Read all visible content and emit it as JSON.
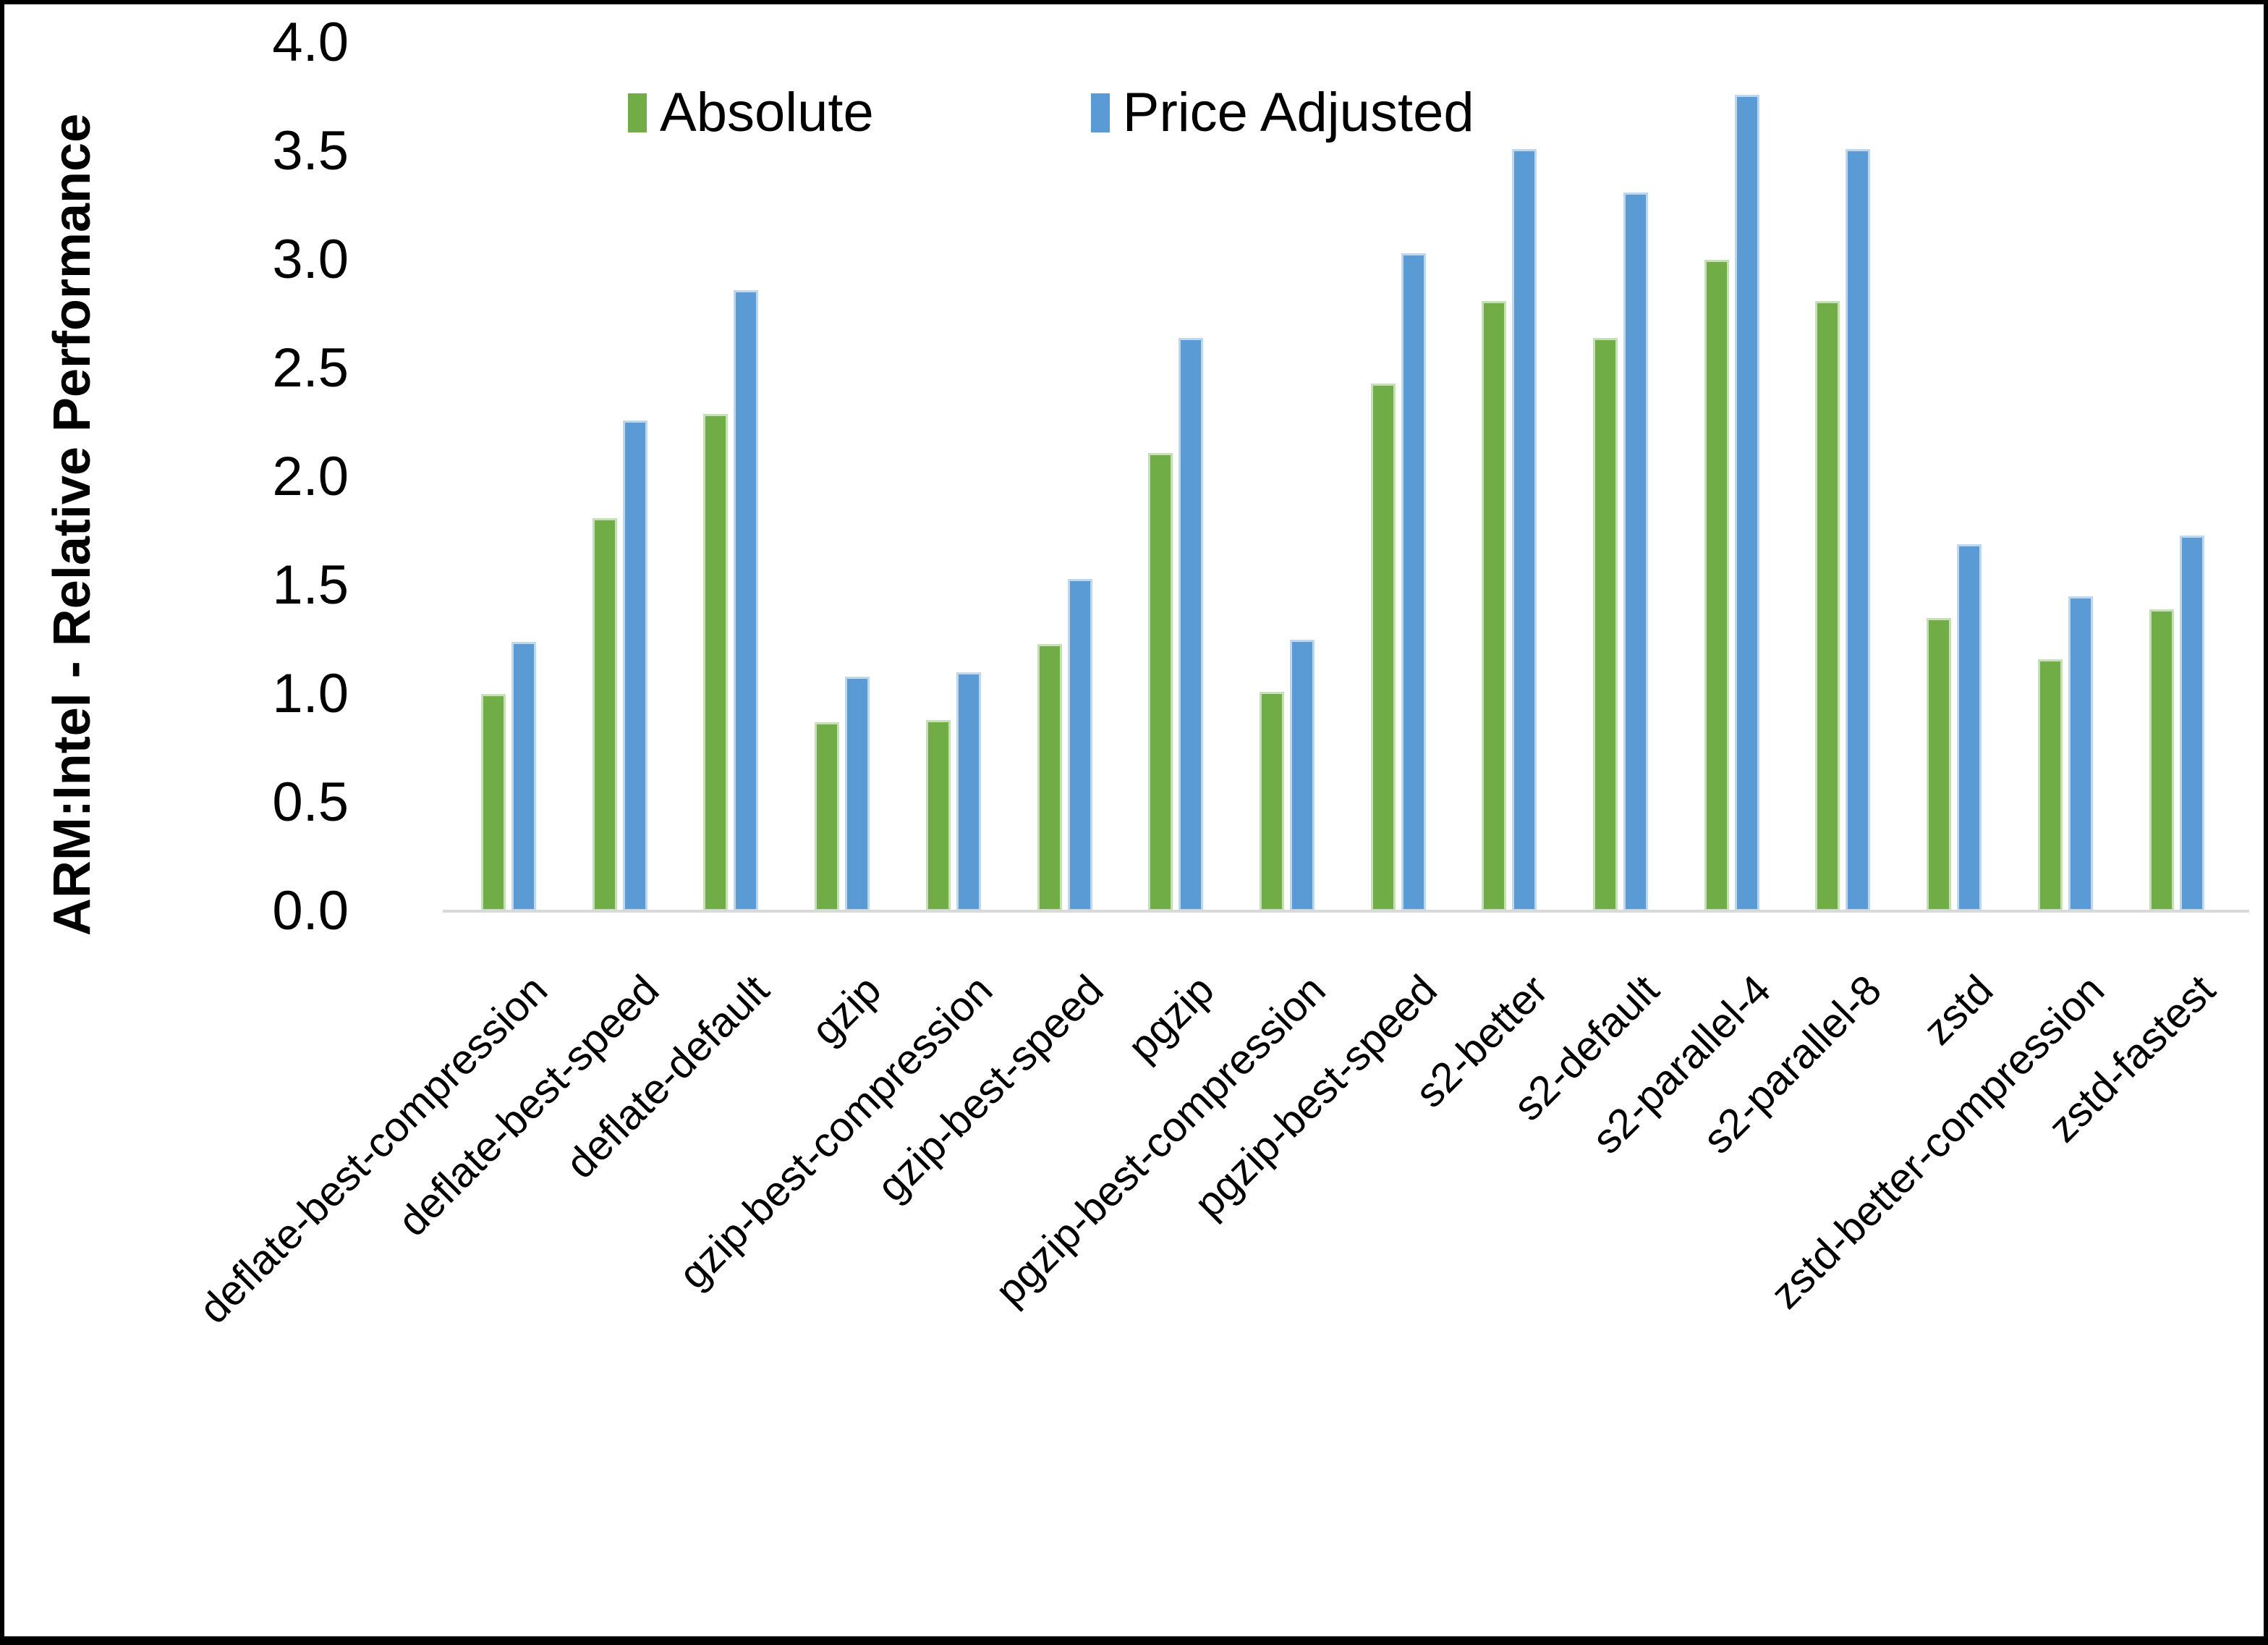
{
  "chart_data": {
    "type": "bar",
    "title": "",
    "xlabel": "",
    "ylabel": "ARM:Intel - Relative Performance",
    "ylim": [
      0.0,
      4.0
    ],
    "ytick_step": 0.5,
    "ytick_format_decimals": 1,
    "grid": false,
    "legend_position": "top-center-inside",
    "categories": [
      "deflate-best-compression",
      "deflate-best-speed",
      "deflate-default",
      "gzip",
      "gzip-best-compression",
      "gzip-best-speed",
      "pgzip",
      "pgzip-best-compression",
      "pgzip-best-speed",
      "s2-better",
      "s2-default",
      "s2-parallel-4",
      "s2-parallel-8",
      "zstd",
      "zstd-better-compression",
      "zstd-fastest"
    ],
    "series": [
      {
        "name": "Absolute",
        "color": "#70AD47",
        "edge_color": "#C5E0B4",
        "values": [
          1.0,
          1.81,
          2.29,
          0.87,
          0.88,
          1.23,
          2.11,
          1.01,
          2.43,
          2.81,
          2.64,
          3.0,
          2.81,
          1.35,
          1.16,
          1.39
        ]
      },
      {
        "name": "Price Adjusted",
        "color": "#5B9BD5",
        "edge_color": "#BDD7EE",
        "values": [
          1.24,
          2.26,
          2.86,
          1.08,
          1.1,
          1.53,
          2.64,
          1.25,
          3.03,
          3.51,
          3.31,
          3.76,
          3.51,
          1.69,
          1.45,
          1.73
        ]
      }
    ]
  },
  "colors": {
    "axis_line": "#D9D9D9",
    "text": "#000000",
    "background": "#FFFFFF",
    "frame": "#000000"
  }
}
